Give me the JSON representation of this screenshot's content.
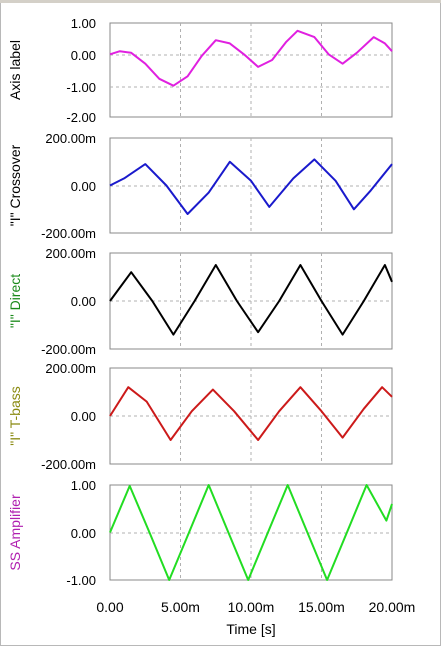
{
  "chart_data": [
    {
      "type": "line",
      "ylabel": "Axis label",
      "ylabel_color": "#000000",
      "series_color": "#e020e0",
      "yticks": [
        "1.00",
        "0.00",
        "-1.00",
        "-2.00"
      ],
      "ylim": [
        -2,
        1
      ],
      "x": [
        0,
        0.7,
        1.5,
        2.5,
        3.5,
        4.5,
        5.5,
        6.5,
        7.5,
        8.5,
        9.5,
        10.5,
        11.5,
        12.5,
        13.3,
        14.5,
        15.5,
        16.5,
        17.5,
        18.7,
        19.5,
        20
      ],
      "y": [
        0.0,
        0.1,
        0.05,
        -0.3,
        -0.78,
        -1.0,
        -0.7,
        -0.05,
        0.45,
        0.35,
        0.0,
        -0.4,
        -0.18,
        0.4,
        0.75,
        0.55,
        0.0,
        -0.3,
        0.05,
        0.55,
        0.35,
        0.1
      ]
    },
    {
      "type": "line",
      "ylabel": "\"I\" Crossover",
      "ylabel_color": "#000000",
      "series_color": "#1a1acc",
      "yticks": [
        "200.00m",
        "0.00",
        "-200.00m"
      ],
      "ylim": [
        -0.2,
        0.2
      ],
      "x": [
        0,
        1,
        2.5,
        4,
        5.5,
        7,
        8.5,
        10,
        11.3,
        13,
        14.5,
        16,
        17.3,
        18.5,
        20
      ],
      "y": [
        0.0,
        0.03,
        0.09,
        0.0,
        -0.12,
        -0.03,
        0.1,
        0.02,
        -0.09,
        0.03,
        0.11,
        0.02,
        -0.1,
        -0.02,
        0.09
      ]
    },
    {
      "type": "line",
      "ylabel": "\"I\" Direct",
      "ylabel_color": "#1a8a1a",
      "series_color": "#000000",
      "yticks": [
        "200.00m",
        "0.00",
        "-200.00m"
      ],
      "ylim": [
        -0.2,
        0.2
      ],
      "x": [
        0,
        1.5,
        3,
        4.5,
        6,
        7.5,
        9,
        10.5,
        12,
        13.5,
        15,
        16.5,
        18,
        19.5,
        20
      ],
      "y": [
        0.0,
        0.12,
        0.0,
        -0.14,
        0.0,
        0.15,
        0.0,
        -0.13,
        0.0,
        0.15,
        0.0,
        -0.14,
        0.0,
        0.15,
        0.08
      ]
    },
    {
      "type": "line",
      "ylabel": "\"I\" T-bass",
      "ylabel_color": "#8a8a10",
      "series_color": "#cc1a1a",
      "yticks": [
        "200.00m",
        "0.00",
        "-200.00m"
      ],
      "ylim": [
        -0.2,
        0.2
      ],
      "x": [
        0,
        1.3,
        2.6,
        4.3,
        5.8,
        7.3,
        8.8,
        10.5,
        12,
        13.5,
        15,
        16.5,
        18,
        19.3,
        20
      ],
      "y": [
        0.0,
        0.12,
        0.06,
        -0.1,
        0.02,
        0.11,
        0.02,
        -0.1,
        0.02,
        0.12,
        0.02,
        -0.09,
        0.03,
        0.12,
        0.08
      ]
    },
    {
      "type": "line",
      "ylabel": "SS Amplifier",
      "ylabel_color": "#b020b0",
      "series_color": "#22dd22",
      "yticks": [
        "1.00",
        "0.00",
        "-1.00"
      ],
      "ylim": [
        -1,
        1
      ],
      "x": [
        0,
        1.4,
        2.8,
        4.2,
        5.6,
        7.0,
        8.4,
        9.8,
        11.2,
        12.6,
        14.0,
        15.4,
        16.8,
        18.2,
        19.6,
        20
      ],
      "y": [
        0.0,
        0.98,
        0.0,
        -1.0,
        0.0,
        1.0,
        0.0,
        -1.0,
        0.0,
        1.0,
        0.0,
        -1.0,
        0.0,
        1.0,
        0.25,
        0.6
      ]
    }
  ],
  "xaxis": {
    "ticks": [
      "0.00",
      "5.00m",
      "10.00m",
      "15.00m",
      "20.00m"
    ],
    "tick_values": [
      0,
      5,
      10,
      15,
      20
    ],
    "xlim": [
      0,
      20
    ],
    "label": "Time [s]"
  }
}
